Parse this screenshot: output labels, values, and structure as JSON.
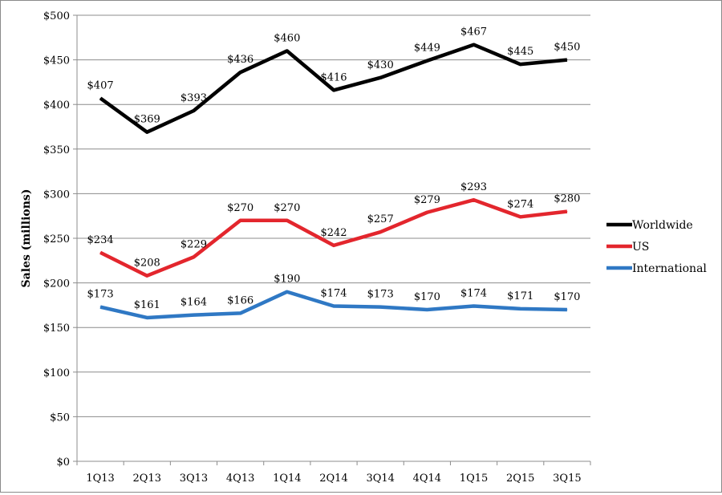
{
  "chart_data": {
    "type": "line",
    "ylabel": "Sales (millions)",
    "ylim": [
      0,
      500
    ],
    "y_ticks": [
      "$0",
      "$50",
      "$100",
      "$150",
      "$200",
      "$250",
      "$300",
      "$350",
      "$400",
      "$450",
      "$500"
    ],
    "categories": [
      "1Q13",
      "2Q13",
      "3Q13",
      "4Q13",
      "1Q14",
      "2Q14",
      "3Q14",
      "4Q14",
      "1Q15",
      "2Q15",
      "3Q15"
    ],
    "grid": true,
    "legend_position": "right",
    "series": [
      {
        "name": "Worldwide",
        "color": "#000000",
        "values": [
          407,
          369,
          393,
          436,
          460,
          416,
          430,
          449,
          467,
          445,
          450
        ],
        "labels": [
          "$407",
          "$369",
          "$393",
          "$436",
          "$460",
          "$416",
          "$430",
          "$449",
          "$467",
          "$445",
          "$450"
        ]
      },
      {
        "name": "US",
        "color": "#e3262d",
        "values": [
          234,
          208,
          229,
          270,
          270,
          242,
          257,
          279,
          293,
          274,
          280
        ],
        "labels": [
          "$234",
          "$208",
          "$229",
          "$270",
          "$270",
          "$242",
          "$257",
          "$279",
          "$293",
          "$274",
          "$280"
        ]
      },
      {
        "name": "International",
        "color": "#2f78c4",
        "values": [
          173,
          161,
          164,
          166,
          190,
          174,
          173,
          170,
          174,
          171,
          170
        ],
        "labels": [
          "$173",
          "$161",
          "$164",
          "$166",
          "$190",
          "$174",
          "$173",
          "$170",
          "$174",
          "$171",
          "$170"
        ]
      }
    ]
  }
}
